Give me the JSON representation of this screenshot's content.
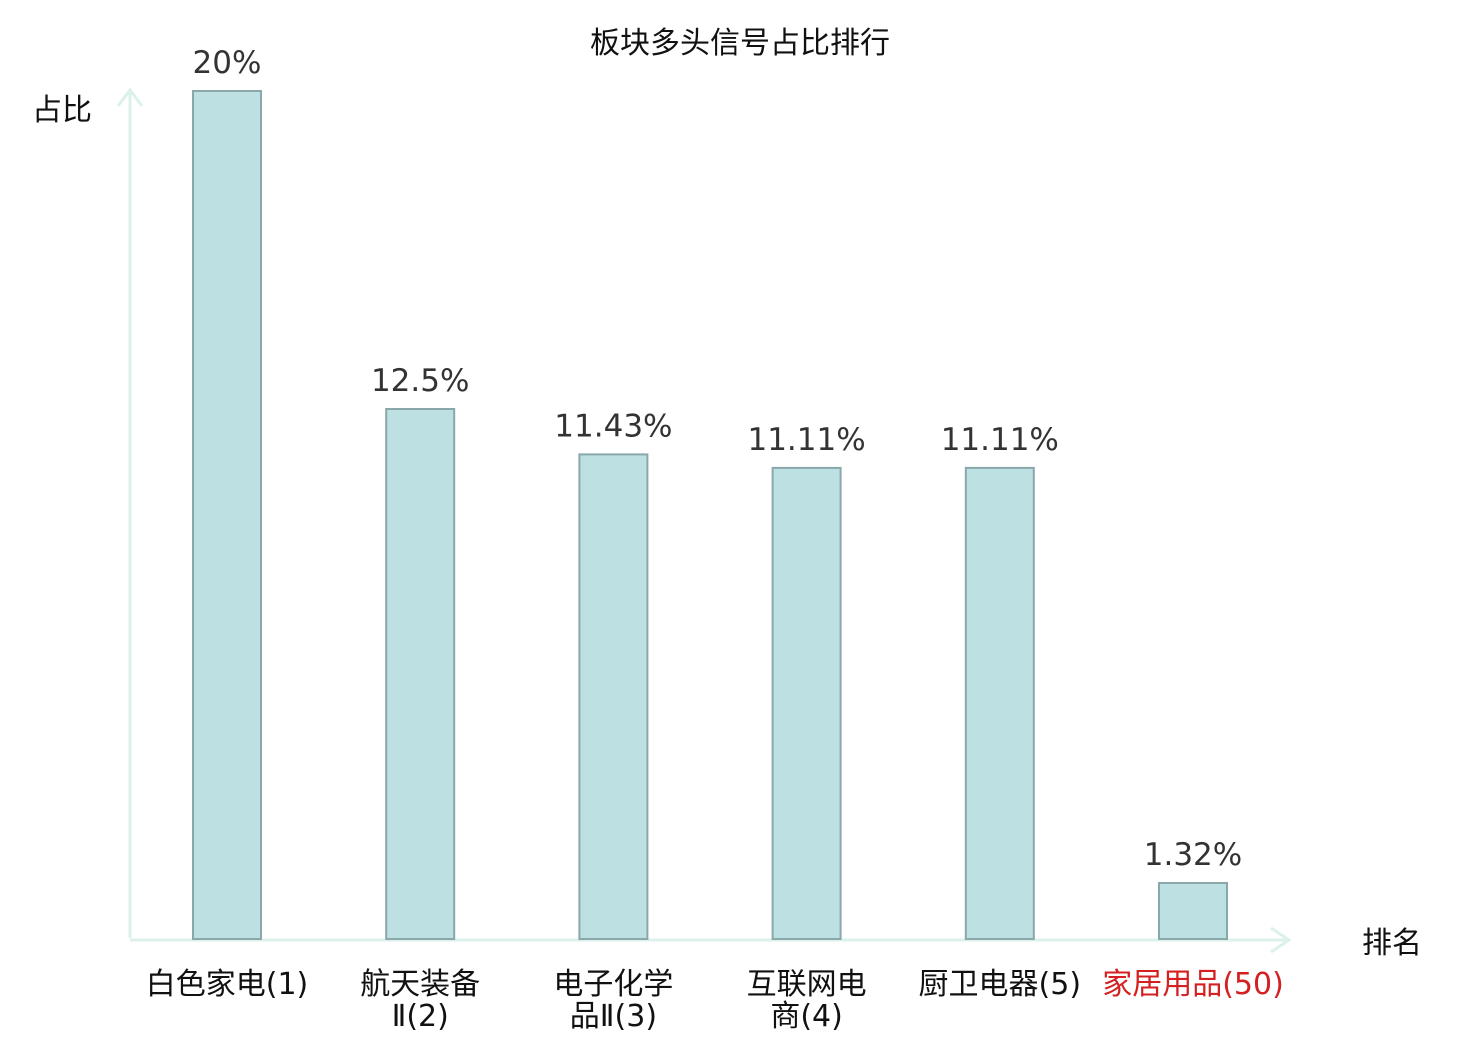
{
  "chart_data": {
    "type": "bar",
    "title": "板块多头信号占比排行",
    "ylabel": "占比",
    "xlabel": "排名",
    "categories": [
      [
        "白色家电(1)"
      ],
      [
        "航天装备",
        "Ⅱ(2)"
      ],
      [
        "电子化学",
        "品Ⅱ(3)"
      ],
      [
        "互联网电",
        "商(4)"
      ],
      [
        "厨卫电器(5)"
      ],
      [
        "家居用品(50)"
      ]
    ],
    "values": [
      20,
      12.5,
      11.43,
      11.11,
      11.11,
      1.32
    ],
    "value_labels": [
      "20%",
      "12.5%",
      "11.43%",
      "11.11%",
      "11.11%",
      "1.32%"
    ],
    "highlight_index": 5,
    "ylim": [
      0,
      20
    ],
    "grid": false,
    "colors": {
      "bar_fill": "#bde0e3",
      "bar_stroke": "#8aa7aa",
      "axis": "#dcf0ec",
      "highlight_text": "#d42020"
    }
  }
}
